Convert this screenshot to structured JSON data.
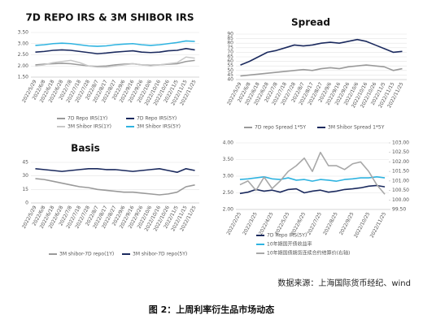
{
  "chart_data": [
    {
      "type": "line",
      "title": "7D REPO IRS & 3M SHIBOR IRS",
      "categories": [
        "2022/5/29",
        "2022/6/8",
        "2022/6/18",
        "2022/6/28",
        "2022/7/8",
        "2022/7/18",
        "2022/7/28",
        "2022/8/7",
        "2022/8/17",
        "2022/8/27",
        "2022/9/6",
        "2022/9/16",
        "2022/9/26",
        "2022/10/6",
        "2022/10/16",
        "2022/10/26",
        "2022/11/5",
        "2022/11/15",
        "2022/11/25"
      ],
      "ylim": [
        1.5,
        3.5
      ],
      "yticks": [
        {
          "value": 1.5,
          "label": "1.50"
        },
        {
          "value": 2,
          "label": "2.00"
        },
        {
          "value": 2.5,
          "label": "2.50"
        },
        {
          "value": 3,
          "label": "3.00"
        },
        {
          "value": 3.5,
          "label": "3.50"
        }
      ],
      "grid": true,
      "series": [
        {
          "name": "7D Repo IRS(1Y)",
          "color": "#9a9a9a",
          "values": [
            2.05,
            2.08,
            2.1,
            2.12,
            2.1,
            2.05,
            2.0,
            1.98,
            2.0,
            2.05,
            2.08,
            2.1,
            2.05,
            2.03,
            2.05,
            2.08,
            2.1,
            2.2,
            2.25
          ]
        },
        {
          "name": "7D Repo IRS(5Y)",
          "color": "#1b2a5e",
          "values": [
            2.62,
            2.65,
            2.7,
            2.72,
            2.7,
            2.65,
            2.6,
            2.55,
            2.58,
            2.62,
            2.65,
            2.68,
            2.62,
            2.6,
            2.62,
            2.68,
            2.7,
            2.78,
            2.72
          ]
        },
        {
          "name": "3M Shibor IRS(1Y)",
          "color": "#c8c8c8",
          "values": [
            2.0,
            2.05,
            2.15,
            2.2,
            2.25,
            2.15,
            2.0,
            1.95,
            1.95,
            2.0,
            2.05,
            2.1,
            2.05,
            2.0,
            2.05,
            2.1,
            2.15,
            2.4,
            2.35
          ]
        },
        {
          "name": "3M Shibor IRS(5Y)",
          "color": "#2fb3e0",
          "values": [
            2.92,
            2.95,
            3.0,
            3.02,
            3.0,
            2.95,
            2.9,
            2.88,
            2.9,
            2.95,
            2.98,
            3.0,
            2.95,
            2.92,
            2.95,
            3.0,
            3.05,
            3.12,
            3.1
          ]
        }
      ]
    },
    {
      "type": "line",
      "title": "Spread",
      "categories": [
        "2022/5/29",
        "2022/6/8",
        "2022/6/18",
        "2022/6/28",
        "2022/7/8",
        "2022/7/18",
        "2022/7/28",
        "2022/8/7",
        "2022/8/17",
        "2022/8/27",
        "2022/9/6",
        "2022/9/16",
        "2022/9/26",
        "2022/10/6",
        "2022/10/16",
        "2022/10/26",
        "2022/11/5",
        "2022/11/15",
        "2022/11/25"
      ],
      "ylim": [
        40,
        90
      ],
      "yticks": [
        40,
        45,
        50,
        55,
        60,
        65,
        70,
        75,
        80,
        85,
        90
      ],
      "grid": true,
      "series": [
        {
          "name": "7D repo Spread 1*5Y",
          "color": "#9a9a9a",
          "values": [
            44,
            45,
            46,
            47,
            48,
            49,
            50,
            51,
            50,
            52,
            53,
            52,
            54,
            55,
            56,
            55,
            54,
            50,
            52
          ]
        },
        {
          "name": "3M Shibor Spread 1*5Y",
          "color": "#1b2a5e",
          "values": [
            56,
            60,
            65,
            70,
            72,
            75,
            78,
            77,
            78,
            80,
            81,
            80,
            82,
            84,
            82,
            78,
            74,
            70,
            71
          ]
        }
      ]
    },
    {
      "type": "line",
      "title": "Basis",
      "categories": [
        "2022/5/29",
        "2022/6/8",
        "2022/6/18",
        "2022/6/28",
        "2022/7/8",
        "2022/7/18",
        "2022/7/28",
        "2022/8/7",
        "2022/8/17",
        "2022/8/27",
        "2022/9/6",
        "2022/9/16",
        "2022/9/26",
        "2022/10/6",
        "2022/10/16",
        "2022/10/26",
        "2022/11/5",
        "2022/11/15",
        "2022/11/25"
      ],
      "ylim": [
        0,
        45
      ],
      "yticks": [
        0,
        15,
        30,
        45
      ],
      "grid": true,
      "series": [
        {
          "name": "3M shibor-7D repo(1Y)",
          "color": "#9a9a9a",
          "values": [
            27,
            26,
            24,
            22,
            20,
            18,
            17,
            15,
            14,
            13,
            12,
            12,
            11,
            10,
            9,
            10,
            12,
            18,
            20
          ]
        },
        {
          "name": "3M shibor-7D repo(5Y)",
          "color": "#1b2a5e",
          "values": [
            38,
            37,
            36,
            35,
            36,
            37,
            38,
            38,
            37,
            37,
            36,
            35,
            36,
            37,
            38,
            36,
            34,
            38,
            36
          ]
        }
      ]
    },
    {
      "type": "line",
      "categories": [
        "2022/2/25",
        null,
        "2022/3/25",
        null,
        "2022/4/25",
        null,
        "2022/5/25",
        null,
        "2022/6/25",
        null,
        "2022/7/25",
        null,
        "2022/8/25",
        null,
        "2022/9/25",
        null,
        "2022/10/25",
        null,
        "2022/11/25"
      ],
      "ylim": [
        2,
        4
      ],
      "yticks": [
        {
          "value": 2,
          "label": "2.00"
        },
        {
          "value": 2.5,
          "label": "2.50"
        },
        {
          "value": 3,
          "label": "3.00"
        },
        {
          "value": 3.5,
          "label": "3.50"
        },
        {
          "value": 4,
          "label": "4.00"
        }
      ],
      "y2lim": [
        99.5,
        103
      ],
      "y2ticks": [
        {
          "value": 99.5,
          "label": "99.50"
        },
        {
          "value": 100,
          "label": "100.00"
        },
        {
          "value": 100.5,
          "label": "100.50"
        },
        {
          "value": 101,
          "label": "101.00"
        },
        {
          "value": 101.5,
          "label": "101.50"
        },
        {
          "value": 102,
          "label": "102.00"
        },
        {
          "value": 102.5,
          "label": "102.50"
        },
        {
          "value": 103,
          "label": "103.00"
        }
      ],
      "grid": true,
      "series": [
        {
          "name": "7D Repo IRS(5Y)",
          "color": "#1b2a5e",
          "values": [
            2.48,
            2.52,
            2.6,
            2.55,
            2.58,
            2.52,
            2.6,
            2.62,
            2.5,
            2.55,
            2.58,
            2.52,
            2.55,
            2.6,
            2.62,
            2.65,
            2.7,
            2.72,
            2.68
          ]
        },
        {
          "name": "10年期国开债收益率",
          "color": "#2fb3e0",
          "values": [
            2.9,
            2.92,
            2.95,
            2.98,
            2.92,
            2.9,
            2.95,
            2.88,
            2.9,
            2.85,
            2.9,
            2.88,
            2.85,
            2.9,
            2.92,
            2.95,
            2.95,
            2.98,
            2.95
          ]
        },
        {
          "name": "10年期国债期货连续合约结算价(右轴)",
          "color": "#a8a8a8",
          "axis": "y2",
          "values": [
            100.8,
            101.0,
            100.5,
            101.2,
            100.6,
            101.0,
            101.5,
            101.8,
            102.2,
            101.5,
            102.5,
            101.8,
            101.8,
            101.6,
            101.9,
            102.0,
            101.5,
            100.8,
            100.3
          ]
        }
      ]
    }
  ],
  "source": "数据来源：上海国际货币经纪、wind",
  "caption": "图 2：上周利率衍生品市场动态"
}
